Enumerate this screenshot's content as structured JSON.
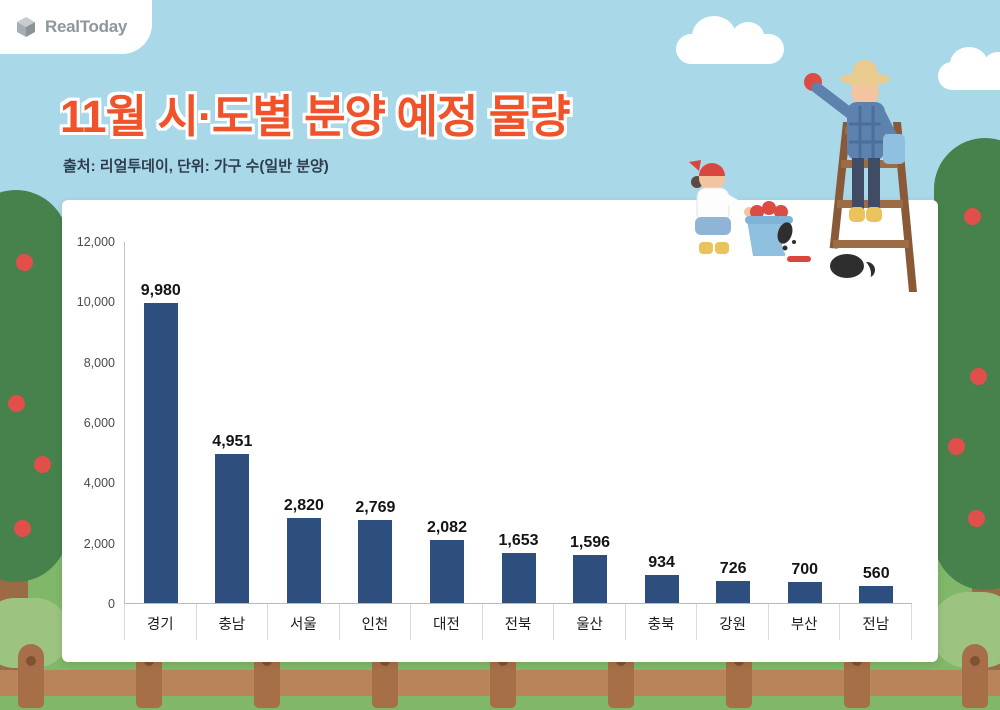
{
  "brand": {
    "name": "RealToday"
  },
  "header": {
    "title": "11월 시·도별 분양 예정 물량",
    "subtitle": "출처: 리얼투데이, 단위: 가구 수(일반 분양)"
  },
  "chart_data": {
    "type": "bar",
    "title": "11월 시·도별 분양 예정 물량",
    "source": "리얼투데이",
    "unit": "가구 수(일반 분양)",
    "categories": [
      "경기",
      "충남",
      "서울",
      "인천",
      "대전",
      "전북",
      "울산",
      "충북",
      "강원",
      "부산",
      "전남"
    ],
    "values": [
      9980,
      4951,
      2820,
      2769,
      2082,
      1653,
      1596,
      934,
      726,
      700,
      560
    ],
    "value_labels": [
      "9,980",
      "4,951",
      "2,820",
      "2,769",
      "2,082",
      "1,653",
      "1,596",
      "934",
      "726",
      "700",
      "560"
    ],
    "ylim": [
      0,
      12000
    ],
    "yticks": [
      0,
      2000,
      4000,
      6000,
      8000,
      10000,
      12000
    ],
    "ytick_labels": [
      "0",
      "2,000",
      "4,000",
      "6,000",
      "8,000",
      "10,000",
      "12,000"
    ],
    "grid": false,
    "legend": "none",
    "bar_color": "#2e4e7e"
  },
  "colors": {
    "sky": "#a9d8e8",
    "ground": "#80b768",
    "title": "#f0532a",
    "bar": "#2e4e7e",
    "fence": "#b9845a",
    "foliage": "#47824c",
    "apple": "#e14f4a"
  }
}
